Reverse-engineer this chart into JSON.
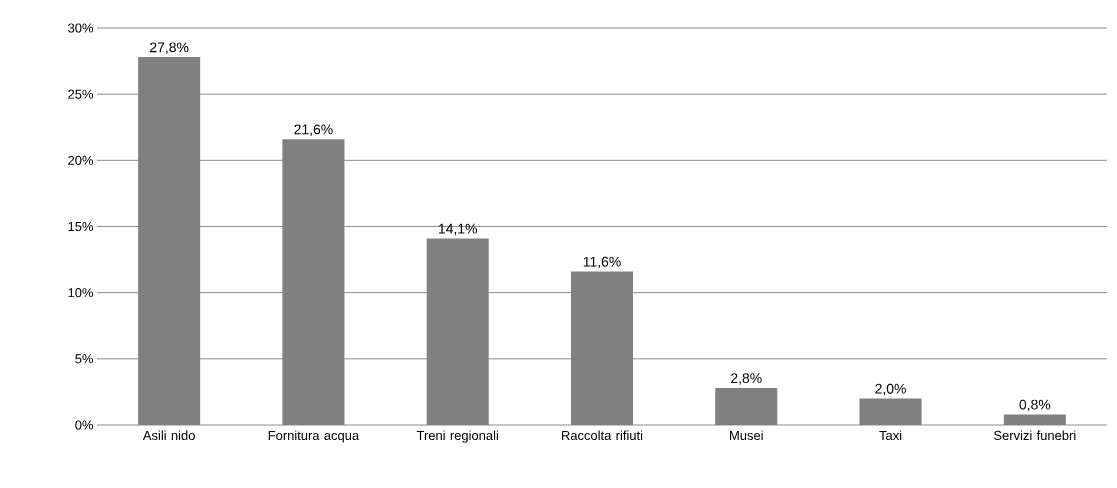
{
  "chart_data": {
    "type": "bar",
    "categories": [
      "Asili nido",
      "Fornitura acqua",
      "Treni regionali",
      "Raccolta rifiuti",
      "Musei",
      "Taxi",
      "Servizi funebri"
    ],
    "values": [
      27.8,
      21.6,
      14.1,
      11.6,
      2.8,
      2.0,
      0.8
    ],
    "value_labels": [
      "27,8%",
      "21,6%",
      "14,1%",
      "11,6%",
      "2,8%",
      "2,0%",
      "0,8%"
    ],
    "color": "#808080",
    "ylim": [
      0,
      30
    ],
    "yticks": [
      {
        "value": 0,
        "label": "0%"
      },
      {
        "value": 5,
        "label": "5%"
      },
      {
        "value": 10,
        "label": "10%"
      },
      {
        "value": 15,
        "label": "15%"
      },
      {
        "value": 20,
        "label": "20%"
      },
      {
        "value": 25,
        "label": "25%"
      },
      {
        "value": 30,
        "label": "30%"
      }
    ],
    "grid": "y"
  }
}
